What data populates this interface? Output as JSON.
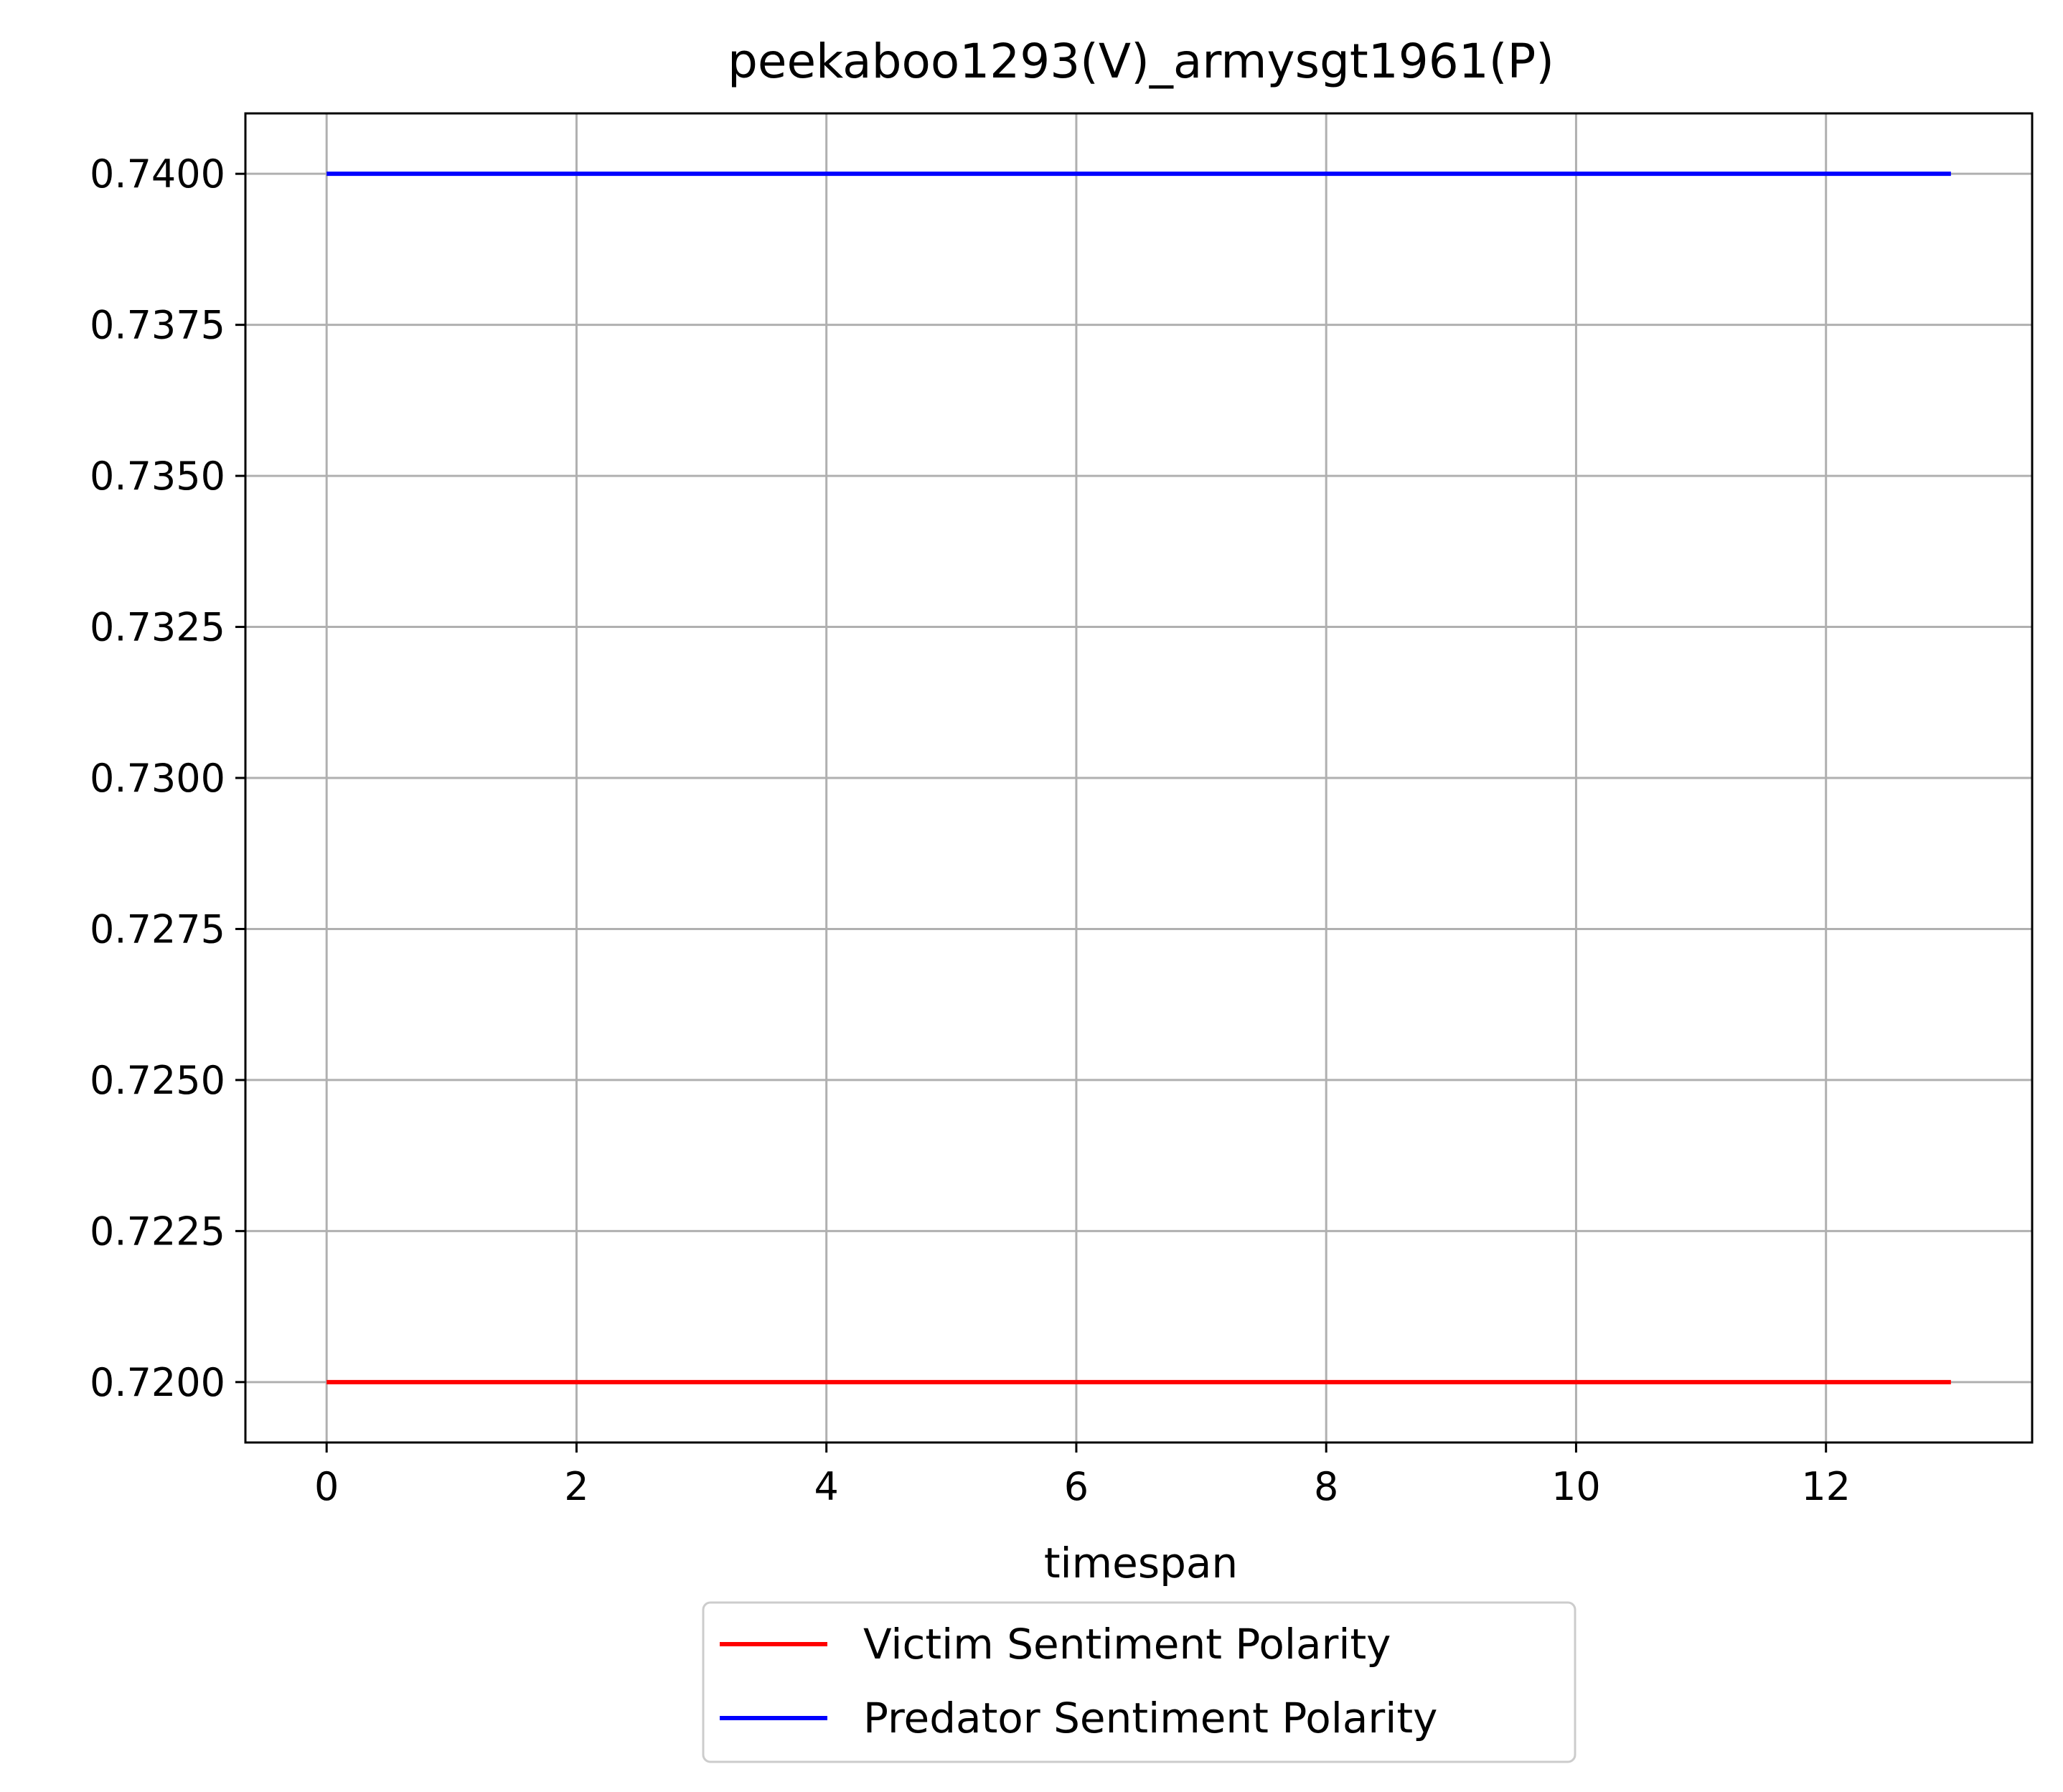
{
  "chart_data": {
    "type": "line",
    "title": "peekaboo1293(V)_armysgt1961(P)",
    "xlabel": "timespan",
    "ylabel": "",
    "x": [
      0,
      1,
      2,
      3,
      4,
      5,
      6,
      7,
      8,
      9,
      10,
      11,
      12,
      13
    ],
    "xlim": [
      -0.65,
      13.65
    ],
    "ylim": [
      0.719,
      0.741
    ],
    "xticks": [
      0,
      2,
      4,
      6,
      8,
      10,
      12
    ],
    "xtick_labels": [
      "0",
      "2",
      "4",
      "6",
      "8",
      "10",
      "12"
    ],
    "yticks": [
      0.72,
      0.7225,
      0.725,
      0.7275,
      0.73,
      0.7325,
      0.735,
      0.7375,
      0.74
    ],
    "ytick_labels": [
      "0.7200",
      "0.7225",
      "0.7250",
      "0.7275",
      "0.7300",
      "0.7325",
      "0.7350",
      "0.7375",
      "0.7400"
    ],
    "grid": true,
    "legend_position": "below-center",
    "series": [
      {
        "name": "Victim Sentiment Polarity",
        "color": "#ff0000",
        "values": [
          0.72,
          0.72,
          0.72,
          0.72,
          0.72,
          0.72,
          0.72,
          0.72,
          0.72,
          0.72,
          0.72,
          0.72,
          0.72,
          0.72
        ]
      },
      {
        "name": "Predator Sentiment Polarity",
        "color": "#0000ff",
        "values": [
          0.74,
          0.74,
          0.74,
          0.74,
          0.74,
          0.74,
          0.74,
          0.74,
          0.74,
          0.74,
          0.74,
          0.74,
          0.74,
          0.74
        ]
      }
    ]
  }
}
